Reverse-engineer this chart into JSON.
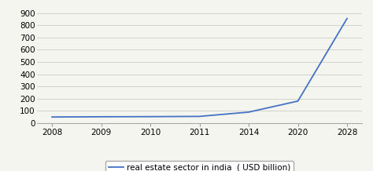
{
  "x_positions": [
    0,
    1,
    2,
    3,
    4,
    5,
    6
  ],
  "x_labels": [
    "2008",
    "2009",
    "2010",
    "2011",
    "2014",
    "2020",
    "2028"
  ],
  "y": [
    50,
    52,
    53,
    55,
    90,
    180,
    855
  ],
  "yticks": [
    0,
    100,
    200,
    300,
    400,
    500,
    600,
    700,
    800,
    900
  ],
  "xlim": [
    -0.3,
    6.3
  ],
  "ylim": [
    0,
    950
  ],
  "line_color": "#4472C4",
  "line_width": 1.3,
  "legend_label": "real estate sector in india  ( USD billion)",
  "grid_color": "#cccccc",
  "background_color": "#f5f5f0",
  "tick_label_fontsize": 7.5,
  "legend_fontsize": 7.5
}
